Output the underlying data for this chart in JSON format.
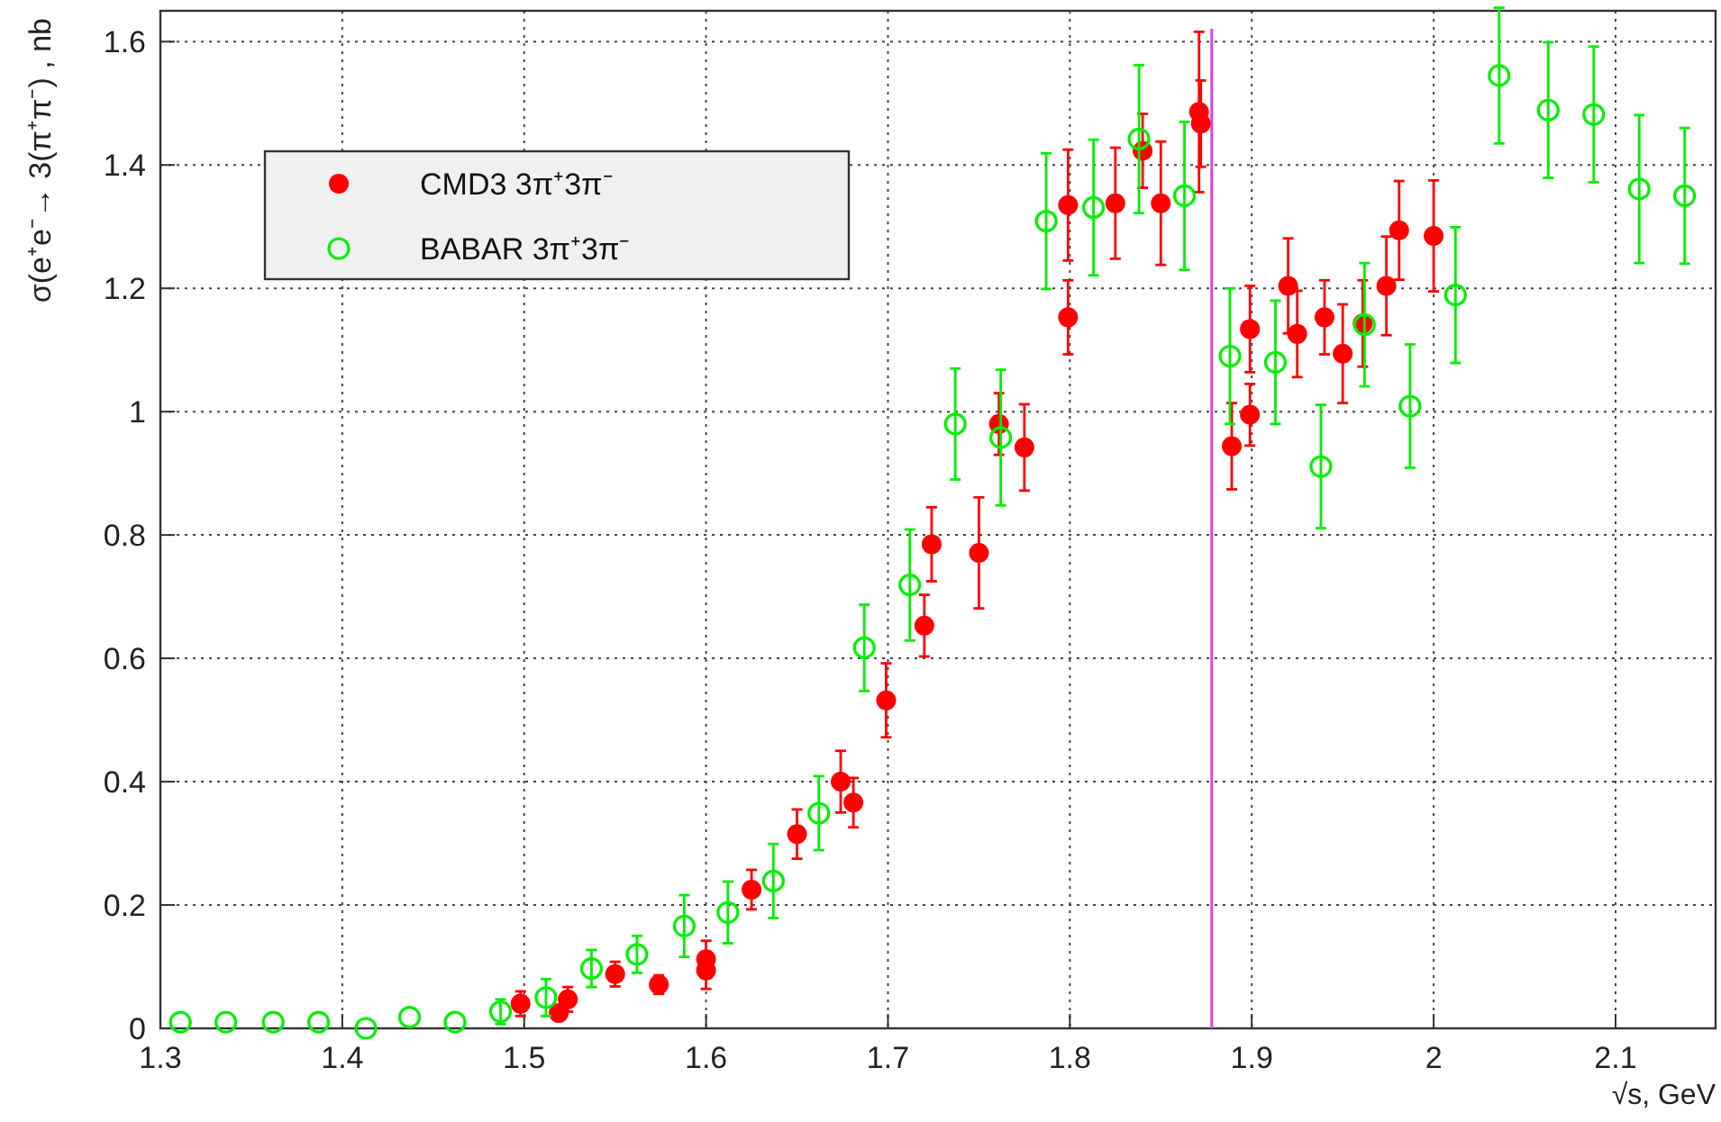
{
  "chart_data": {
    "type": "scatter",
    "xlabel": "√s, GeV",
    "ylabel": "σ(e⁺e⁻→ 3(π⁺π⁻) , nb",
    "xlim": [
      1.3,
      2.155
    ],
    "ylim": [
      0,
      1.65
    ],
    "xticks": [
      1.3,
      1.4,
      1.5,
      1.6,
      1.7,
      1.8,
      1.9,
      2,
      2.1
    ],
    "yticks": [
      0,
      0.2,
      0.4,
      0.6,
      0.8,
      1,
      1.2,
      1.4,
      1.6
    ],
    "grid": true,
    "legend": "top left",
    "marker": "circle",
    "ref_lines": [
      {
        "axis": "x",
        "value": 1.878,
        "color": "#e040e0"
      }
    ],
    "series": [
      {
        "name": "CMD3 3π⁺3π⁻",
        "color": "#ff0000",
        "x": [
          1.498,
          1.519,
          1.524,
          1.55,
          1.574,
          1.6,
          1.6,
          1.625,
          1.65,
          1.674,
          1.681,
          1.699,
          1.72,
          1.724,
          1.75,
          1.761,
          1.775,
          1.799,
          1.799,
          1.825,
          1.84,
          1.85,
          1.871,
          1.872,
          1.889,
          1.899,
          1.899,
          1.92,
          1.925,
          1.94,
          1.95,
          1.961,
          1.974,
          1.981,
          2.0
        ],
        "values": [
          0.04,
          0.025,
          0.047,
          0.088,
          0.071,
          0.112,
          0.094,
          0.225,
          0.315,
          0.4,
          0.366,
          0.532,
          0.653,
          0.785,
          0.771,
          0.98,
          0.942,
          1.335,
          1.153,
          1.338,
          1.423,
          1.338,
          1.486,
          1.467,
          0.944,
          1.134,
          0.995,
          1.204,
          1.126,
          1.153,
          1.094,
          1.143,
          1.204,
          1.294,
          1.285
        ],
        "errors": [
          0.02,
          null,
          0.02,
          0.02,
          0.015,
          0.03,
          0.03,
          0.032,
          0.04,
          0.05,
          0.04,
          0.06,
          0.05,
          0.06,
          0.09,
          0.05,
          0.07,
          0.09,
          0.06,
          0.09,
          0.06,
          0.1,
          0.13,
          0.07,
          0.07,
          0.07,
          0.05,
          0.077,
          0.07,
          0.06,
          0.08,
          0.07,
          0.08,
          0.08,
          0.09
        ]
      },
      {
        "name": "BABAR 3π⁺3π⁻",
        "color": "#00ee00",
        "x": [
          1.311,
          1.336,
          1.362,
          1.387,
          1.413,
          1.437,
          1.462,
          1.487,
          1.512,
          1.537,
          1.562,
          1.588,
          1.612,
          1.637,
          1.662,
          1.687,
          1.712,
          1.737,
          1.762,
          1.787,
          1.813,
          1.838,
          1.863,
          1.888,
          1.913,
          1.938,
          1.962,
          1.987,
          2.012,
          2.036,
          2.063,
          2.088,
          2.113,
          2.138
        ],
        "values": [
          0.01,
          0.01,
          0.01,
          0.01,
          0.0,
          0.018,
          0.01,
          0.027,
          0.05,
          0.097,
          0.12,
          0.166,
          0.188,
          0.239,
          0.349,
          0.617,
          0.719,
          0.98,
          0.958,
          1.309,
          1.331,
          1.442,
          1.35,
          1.09,
          1.08,
          0.911,
          1.141,
          1.009,
          1.189,
          1.545,
          1.489,
          1.482,
          1.361,
          1.35
        ],
        "errors": [
          null,
          null,
          null,
          null,
          null,
          null,
          null,
          0.02,
          0.03,
          0.03,
          0.03,
          0.05,
          0.05,
          0.06,
          0.06,
          0.07,
          0.09,
          0.09,
          0.11,
          0.11,
          0.11,
          0.12,
          0.12,
          0.11,
          0.1,
          0.1,
          0.1,
          0.1,
          0.11,
          0.11,
          0.11,
          0.11,
          0.12,
          0.11
        ]
      }
    ]
  }
}
